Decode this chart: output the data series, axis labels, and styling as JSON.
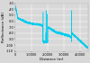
{
  "title": "",
  "xlabel": "Distance (m)",
  "ylabel": "Reflectance (dB)",
  "xlim": [
    0,
    0.00045
  ],
  "ylim": [
    -110,
    -30
  ],
  "xtick_values": [
    0,
    0.0001,
    0.0002,
    0.0003,
    0.0004
  ],
  "xtick_labels": [
    "0",
    "1.0000",
    "2.0000",
    "3.0000",
    "4.0000"
  ],
  "ytick_values": [
    -110,
    -100,
    -90,
    -80,
    -70,
    -60,
    -50,
    -40,
    -30
  ],
  "ytick_labels": [
    "-110",
    "-100",
    "-90",
    "-80",
    "-70",
    "-60",
    "-50",
    "-40",
    "-30"
  ],
  "line_color": "#00ccee",
  "bg_color": "#d8d8d8",
  "grid_color": "#ffffff",
  "label_fontsize": 3.0,
  "tick_fontsize": 2.5
}
